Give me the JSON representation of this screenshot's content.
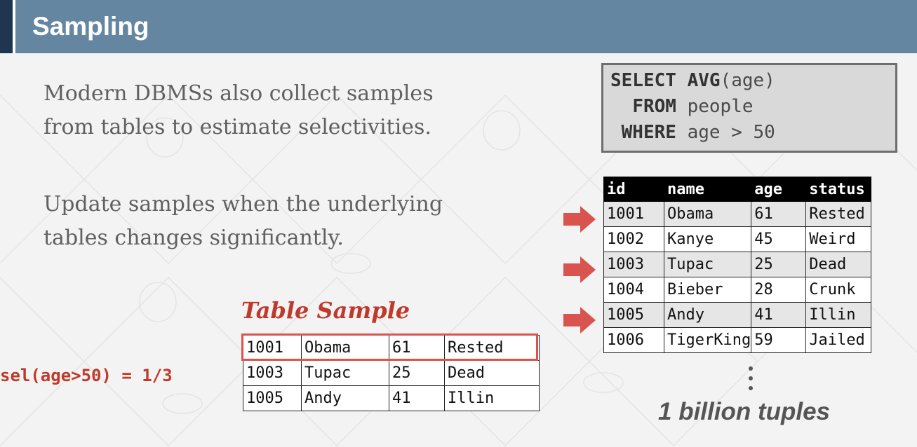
{
  "header": {
    "title": "Sampling"
  },
  "bullets": {
    "first": [
      "Modern DBMSs also collect samples",
      "from tables to estimate selectivities."
    ],
    "second": [
      "Update samples when the underlying",
      "tables changes significantly."
    ]
  },
  "query": {
    "line1": {
      "kw1": "SELECT",
      "kw2": "AVG",
      "rest": "(age)"
    },
    "line2": {
      "kw": "FROM",
      "rest": " people"
    },
    "line3": {
      "kw": "WHERE",
      "rest": " age > 50"
    }
  },
  "people_table": {
    "headers": [
      "id",
      "name",
      "age",
      "status"
    ],
    "rows": [
      [
        "1001",
        "Obama",
        "61",
        "Rested"
      ],
      [
        "1002",
        "Kanye",
        "45",
        "Weird"
      ],
      [
        "1003",
        "Tupac",
        "25",
        "Dead"
      ],
      [
        "1004",
        "Bieber",
        "28",
        "Crunk"
      ],
      [
        "1005",
        "Andy",
        "41",
        "Illin"
      ],
      [
        "1006",
        "TigerKing",
        "59",
        "Jailed"
      ]
    ]
  },
  "more_rows_label": "1 billion tuples",
  "sample": {
    "title": "Table Sample",
    "rows": [
      [
        "1001",
        "Obama",
        "61",
        "Rested"
      ],
      [
        "1003",
        "Tupac",
        "25",
        "Dead"
      ],
      [
        "1005",
        "Andy",
        "41",
        "Illin"
      ]
    ]
  },
  "selectivity": "sel(age>50) = 1/3",
  "colors": {
    "header_bg": "#6586a1",
    "header_accent": "#1f3550",
    "accent_red": "#c0392b",
    "arrow_red": "#d9534f"
  },
  "icons": [
    "right-arrow-icon",
    "vertical-ellipsis-icon"
  ]
}
